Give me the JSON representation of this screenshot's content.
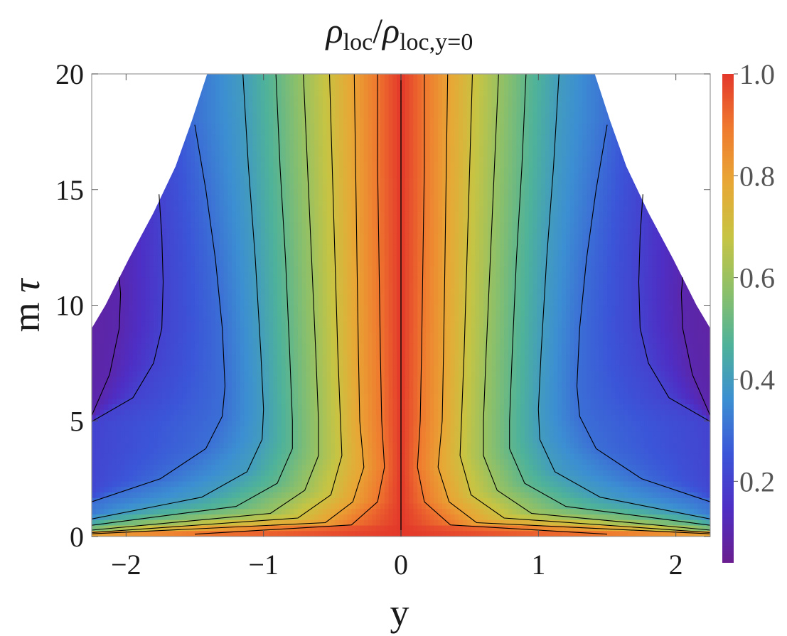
{
  "chart_data": {
    "type": "heatmap",
    "title": {
      "symbol": "ρ",
      "num_sub": "loc",
      "slash": "/",
      "den_sub": "loc,y=0"
    },
    "xlabel": "y",
    "ylabel": {
      "m": "m",
      "tau": "τ"
    },
    "xlim": [
      -2.25,
      2.25
    ],
    "ylim": [
      0,
      20
    ],
    "x_ticks": [
      {
        "value": -2,
        "label": "−2"
      },
      {
        "value": -1,
        "label": "−1"
      },
      {
        "value": 0,
        "label": "0"
      },
      {
        "value": 1,
        "label": "1"
      },
      {
        "value": 2,
        "label": "2"
      }
    ],
    "y_ticks": [
      {
        "value": 0,
        "label": "0"
      },
      {
        "value": 5,
        "label": "5"
      },
      {
        "value": 10,
        "label": "10"
      },
      {
        "value": 15,
        "label": "15"
      },
      {
        "value": 20,
        "label": "20"
      }
    ],
    "colorbar": {
      "range": [
        0.04,
        1.0
      ],
      "ticks": [
        {
          "value": 0.2,
          "label": "0.2"
        },
        {
          "value": 0.4,
          "label": "0.4"
        },
        {
          "value": 0.6,
          "label": "0.6"
        },
        {
          "value": 0.8,
          "label": "0.8"
        },
        {
          "value": 1.0,
          "label": "1.0"
        }
      ],
      "palette": [
        "#6a1e8f",
        "#4e2ec4",
        "#3b55d8",
        "#3c8fd2",
        "#4eb29a",
        "#8cc06a",
        "#c7c443",
        "#e8a735",
        "#ef7a2f",
        "#e3382b"
      ]
    },
    "domain_boundary": [
      {
        "tau": 9,
        "y": 2.25
      },
      {
        "tau": 10,
        "y": 2.15
      },
      {
        "tau": 12,
        "y": 1.98
      },
      {
        "tau": 14,
        "y": 1.8
      },
      {
        "tau": 16,
        "y": 1.64
      },
      {
        "tau": 18,
        "y": 1.52
      },
      {
        "tau": 20,
        "y": 1.41
      }
    ],
    "contour_levels": [
      0.05,
      0.1,
      0.2,
      0.3,
      0.4,
      0.5,
      0.6,
      0.7,
      0.8,
      0.9
    ],
    "contours": [
      {
        "level": 0.9,
        "points": [
          {
            "tau": 0.1,
            "y": 1.5
          },
          {
            "tau": 0.5,
            "y": 0.36
          },
          {
            "tau": 1.5,
            "y": 0.17
          },
          {
            "tau": 3,
            "y": 0.12
          },
          {
            "tau": 5,
            "y": 0.14
          },
          {
            "tau": 8,
            "y": 0.15
          },
          {
            "tau": 12,
            "y": 0.16
          },
          {
            "tau": 16,
            "y": 0.17
          },
          {
            "tau": 20,
            "y": 0.17
          }
        ]
      },
      {
        "level": 0.8,
        "points": [
          {
            "tau": 0.1,
            "y": 2.3
          },
          {
            "tau": 0.6,
            "y": 0.55
          },
          {
            "tau": 1.5,
            "y": 0.35
          },
          {
            "tau": 3,
            "y": 0.27
          },
          {
            "tau": 5,
            "y": 0.3
          },
          {
            "tau": 8,
            "y": 0.31
          },
          {
            "tau": 12,
            "y": 0.32
          },
          {
            "tau": 16,
            "y": 0.33
          },
          {
            "tau": 20,
            "y": 0.34
          }
        ]
      },
      {
        "level": 0.7,
        "points": [
          {
            "tau": 0.15,
            "y": 2.3
          },
          {
            "tau": 0.8,
            "y": 0.75
          },
          {
            "tau": 1.8,
            "y": 0.51
          },
          {
            "tau": 3.5,
            "y": 0.43
          },
          {
            "tau": 5,
            "y": 0.44
          },
          {
            "tau": 8,
            "y": 0.46
          },
          {
            "tau": 12,
            "y": 0.48
          },
          {
            "tau": 16,
            "y": 0.5
          },
          {
            "tau": 20,
            "y": 0.52
          }
        ]
      },
      {
        "level": 0.6,
        "points": [
          {
            "tau": 0.25,
            "y": 2.3
          },
          {
            "tau": 1.0,
            "y": 0.95
          },
          {
            "tau": 2.0,
            "y": 0.7
          },
          {
            "tau": 3.5,
            "y": 0.6
          },
          {
            "tau": 5,
            "y": 0.6
          },
          {
            "tau": 8,
            "y": 0.62
          },
          {
            "tau": 12,
            "y": 0.65
          },
          {
            "tau": 16,
            "y": 0.68
          },
          {
            "tau": 20,
            "y": 0.71
          }
        ]
      },
      {
        "level": 0.5,
        "points": [
          {
            "tau": 0.45,
            "y": 2.3
          },
          {
            "tau": 1.3,
            "y": 1.2
          },
          {
            "tau": 2.3,
            "y": 0.9
          },
          {
            "tau": 3.8,
            "y": 0.79
          },
          {
            "tau": 5,
            "y": 0.79
          },
          {
            "tau": 8,
            "y": 0.81
          },
          {
            "tau": 12,
            "y": 0.84
          },
          {
            "tau": 16,
            "y": 0.88
          },
          {
            "tau": 20,
            "y": 0.91
          }
        ]
      },
      {
        "level": 0.4,
        "points": [
          {
            "tau": 0.7,
            "y": 2.3
          },
          {
            "tau": 1.7,
            "y": 1.45
          },
          {
            "tau": 2.8,
            "y": 1.12
          },
          {
            "tau": 4.2,
            "y": 1.01
          },
          {
            "tau": 5.5,
            "y": 1.0
          },
          {
            "tau": 8,
            "y": 1.02
          },
          {
            "tau": 12,
            "y": 1.06
          },
          {
            "tau": 16,
            "y": 1.11
          },
          {
            "tau": 20,
            "y": 1.15
          }
        ]
      },
      {
        "level": 0.3,
        "points": [
          {
            "tau": 1.4,
            "y": 2.3
          },
          {
            "tau": 2.5,
            "y": 1.75
          },
          {
            "tau": 3.8,
            "y": 1.42
          },
          {
            "tau": 5.2,
            "y": 1.3
          },
          {
            "tau": 6.5,
            "y": 1.28
          },
          {
            "tau": 9,
            "y": 1.3
          },
          {
            "tau": 12,
            "y": 1.35
          },
          {
            "tau": 15,
            "y": 1.42
          },
          {
            "tau": 17.8,
            "y": 1.5
          }
        ]
      },
      {
        "level": 0.2,
        "points": [
          {
            "tau": 4.8,
            "y": 2.3
          },
          {
            "tau": 6.0,
            "y": 1.95
          },
          {
            "tau": 7.5,
            "y": 1.8
          },
          {
            "tau": 9,
            "y": 1.74
          },
          {
            "tau": 11,
            "y": 1.73
          },
          {
            "tau": 13,
            "y": 1.74
          },
          {
            "tau": 14.8,
            "y": 1.76
          }
        ]
      },
      {
        "level": 0.1,
        "points": [
          {
            "tau": 2.5,
            "y": 2.45
          },
          {
            "tau": 7,
            "y": 2.12
          },
          {
            "tau": 9,
            "y": 2.05
          },
          {
            "tau": 10.5,
            "y": 2.04
          },
          {
            "tau": 11.2,
            "y": 2.05
          }
        ]
      }
    ]
  }
}
